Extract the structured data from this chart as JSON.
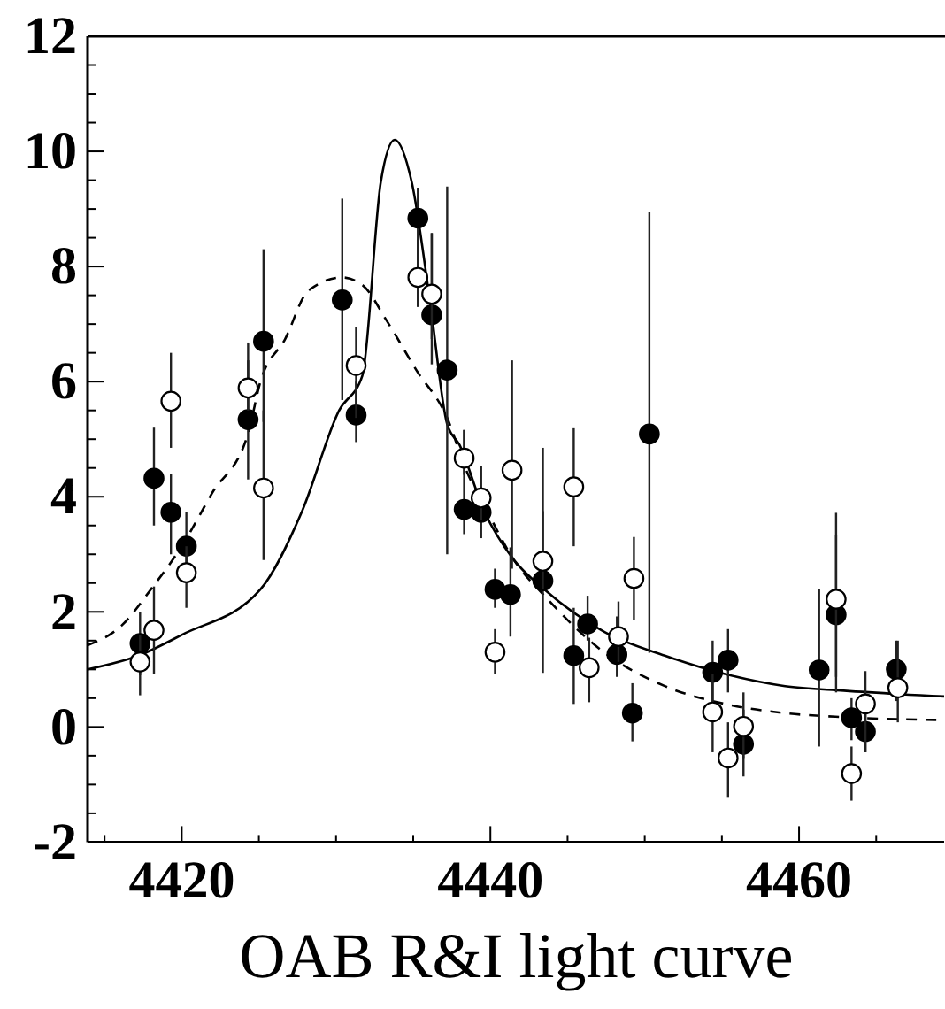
{
  "chart_data": {
    "type": "scatter",
    "xlabel": "OAB R&I light curve",
    "xlim": [
      4413.9,
      4469.4
    ],
    "ylim": [
      -2,
      12
    ],
    "xticks": [
      {
        "value": 4415,
        "label": null
      },
      4420,
      {
        "value": 4425,
        "label": null
      },
      {
        "value": 4430,
        "label": null
      },
      {
        "value": 4435,
        "label": null
      },
      4440,
      {
        "value": 4445,
        "label": null
      },
      {
        "value": 4450,
        "label": null
      },
      {
        "value": 4455,
        "label": null
      },
      4460,
      {
        "value": 4465,
        "label": null
      }
    ],
    "yticks": [
      -2,
      {
        "value": -1.5,
        "label": null
      },
      {
        "value": -1,
        "label": null
      },
      {
        "value": -0.5,
        "label": null
      },
      0,
      {
        "value": 0.5,
        "label": null
      },
      {
        "value": 1,
        "label": null
      },
      {
        "value": 1.5,
        "label": null
      },
      2,
      {
        "value": 2.5,
        "label": null
      },
      {
        "value": 3,
        "label": null
      },
      {
        "value": 3.5,
        "label": null
      },
      4,
      {
        "value": 4.5,
        "label": null
      },
      {
        "value": 5,
        "label": null
      },
      {
        "value": 5.5,
        "label": null
      },
      6,
      {
        "value": 6.5,
        "label": null
      },
      {
        "value": 7,
        "label": null
      },
      {
        "value": 7.5,
        "label": null
      },
      8,
      {
        "value": 8.5,
        "label": null
      },
      {
        "value": 9,
        "label": null
      },
      {
        "value": 9.5,
        "label": null
      },
      10,
      {
        "value": 10.5,
        "label": null
      },
      {
        "value": 11,
        "label": null
      },
      {
        "value": 11.5,
        "label": null
      },
      12
    ],
    "grid": false,
    "series": [
      {
        "marker": "circle",
        "color": "#000000",
        "x": [
          4417.3,
          4418.2,
          4419.3,
          4420.3,
          4424.3,
          4425.3,
          4430.4,
          4431.3,
          4435.3,
          4436.2,
          4437.2,
          4438.3,
          4439.4,
          4440.3,
          4441.3,
          4443.4,
          4445.4,
          4446.3,
          4448.2,
          4449.2,
          4450.3,
          4454.4,
          4455.4,
          4456.4,
          4461.3,
          4462.4,
          4463.4,
          4464.3,
          4466.3
        ],
        "values": [
          1.45,
          4.32,
          3.73,
          3.14,
          5.34,
          6.7,
          7.42,
          5.42,
          8.84,
          7.16,
          6.2,
          3.78,
          3.73,
          2.39,
          2.3,
          2.54,
          1.24,
          1.79,
          1.26,
          0.24,
          5.09,
          0.95,
          1.16,
          -0.3,
          0.99,
          1.95,
          0.16,
          -0.08,
          1.0
        ],
        "errors": [
          [
            0.9,
            2.0
          ],
          [
            3.5,
            5.2
          ],
          [
            3.0,
            4.4
          ],
          [
            2.5,
            3.73
          ],
          [
            4.3,
            6.68
          ],
          [
            5.3,
            8.3
          ],
          [
            5.68,
            9.18
          ],
          [
            4.95,
            6.0
          ],
          [
            7.3,
            9.37
          ],
          [
            6.3,
            8.58
          ],
          [
            3.0,
            9.39
          ],
          [
            3.35,
            5.16
          ],
          [
            3.28,
            4.53
          ],
          [
            2.07,
            2.75
          ],
          [
            1.57,
            3.12
          ],
          [
            0.94,
            3.75
          ],
          [
            0.4,
            2.07
          ],
          [
            1.5,
            2.28
          ],
          [
            0.87,
            1.92
          ],
          [
            -0.25,
            0.76
          ],
          [
            1.29,
            8.95
          ],
          [
            0.3,
            1.5
          ],
          [
            0.6,
            1.7
          ],
          [
            -0.86,
            0.3
          ],
          [
            -0.34,
            2.39
          ],
          [
            0.6,
            3.33
          ],
          [
            -0.23,
            0.5
          ],
          [
            -0.44,
            0.35
          ],
          [
            0.45,
            1.5
          ]
        ]
      },
      {
        "marker": "circle",
        "color": "#ffffff",
        "x": [
          4417.3,
          4418.2,
          4419.3,
          4420.3,
          4424.3,
          4425.3,
          4431.3,
          4435.3,
          4436.2,
          4438.3,
          4439.4,
          4440.3,
          4441.4,
          4443.4,
          4445.4,
          4446.4,
          4448.3,
          4449.3,
          4454.4,
          4455.4,
          4456.4,
          4462.4,
          4463.4,
          4464.3,
          4466.4
        ],
        "values": [
          1.13,
          1.68,
          5.66,
          2.68,
          5.89,
          4.15,
          6.28,
          7.81,
          7.52,
          4.67,
          3.98,
          1.3,
          4.46,
          2.88,
          4.17,
          1.03,
          1.57,
          2.58,
          0.26,
          -0.54,
          0.01,
          2.22,
          -0.81,
          0.4,
          0.68
        ],
        "errors": [
          [
            0.55,
            1.6
          ],
          [
            0.92,
            2.44
          ],
          [
            4.85,
            6.5
          ],
          [
            2.07,
            3.14
          ],
          [
            5.5,
            6.37
          ],
          [
            2.9,
            5.5
          ],
          [
            5.37,
            6.95
          ],
          [
            7.3,
            8.47
          ],
          [
            6.74,
            8.58
          ],
          [
            4.38,
            5.16
          ],
          [
            3.6,
            4.17
          ],
          [
            0.92,
            1.7
          ],
          [
            2.75,
            6.37
          ],
          [
            2.39,
            4.85
          ],
          [
            3.14,
            5.19
          ],
          [
            0.43,
            1.55
          ],
          [
            1.13,
            2.18
          ],
          [
            1.86,
            3.3
          ],
          [
            -0.44,
            0.92
          ],
          [
            -1.23,
            0.08
          ],
          [
            -0.54,
            0.6
          ],
          [
            0.87,
            3.72
          ],
          [
            -1.28,
            -0.34
          ],
          [
            -0.44,
            0.97
          ],
          [
            0.08,
            1.5
          ]
        ]
      },
      {
        "type": "line",
        "color": "#000000",
        "line_style": "solid",
        "x": [
          4413.9,
          4417.3,
          4420,
          4425.1,
          4427.8,
          4430.2,
          4431.7,
          4432.9,
          4433.8,
          4434.9,
          4436.1,
          4437.2,
          4438.0,
          4439.6,
          4441.5,
          4443.5,
          4447.4,
          4451.3,
          4455.2,
          4459.1,
          4462.9,
          4469.4
        ],
        "values": [
          1.0,
          1.25,
          1.6,
          2.39,
          3.75,
          5.5,
          6.1,
          9.47,
          10.2,
          9.47,
          7.37,
          5.26,
          4.9,
          3.75,
          2.91,
          2.39,
          1.65,
          1.24,
          0.92,
          0.71,
          0.63,
          0.53
        ]
      },
      {
        "type": "line",
        "color": "#000000",
        "line_style": "dashed",
        "x": [
          4413.9,
          4416.1,
          4418.0,
          4420,
          4421.96,
          4424.3,
          4425.1,
          4426.7,
          4428.2,
          4430.4,
          4431.7,
          4433.3,
          4435.2,
          4437.2,
          4438.4,
          4439.6,
          4441.5,
          4443.5,
          4447.4,
          4451.3,
          4455.2,
          4459.1,
          4462.9,
          4469.4
        ],
        "values": [
          1.42,
          1.76,
          2.39,
          3.14,
          4.06,
          5.1,
          6.0,
          6.74,
          7.58,
          7.81,
          7.68,
          7.05,
          6.2,
          5.37,
          4.48,
          3.85,
          2.91,
          2.28,
          1.29,
          0.71,
          0.4,
          0.24,
          0.17,
          0.12
        ]
      }
    ]
  }
}
